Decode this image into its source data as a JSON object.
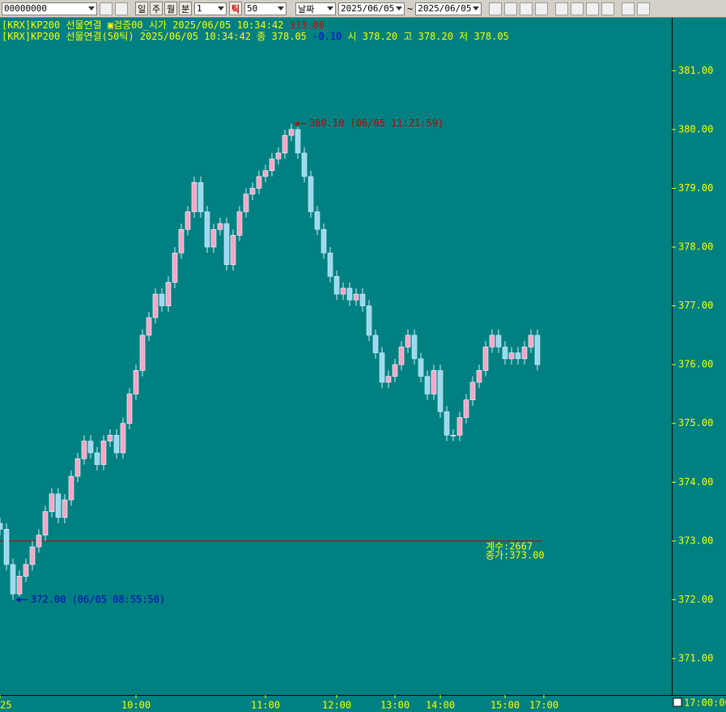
{
  "toolbar": {
    "code": "00000000",
    "period_buttons": [
      "일",
      "주",
      "월",
      "분"
    ],
    "interval": "1",
    "tick_button": "틱",
    "tick_count": "50",
    "date_mode": "날짜",
    "start_date": "2025/06/05",
    "date_separator": "~",
    "end_date": "2025/06/05"
  },
  "legend": {
    "line1": {
      "text": "[KRX]KP200 선물연결 ▣검증00_시가  2025/06/05 10:34:42",
      "value": "373.00"
    },
    "line2": {
      "text": "[KRX]KP200 선물연결(50틱) 2025/06/05 10:34:42  종 378.05",
      "change": "-0.10",
      "rest": "시 378.20 고 378.20 저 378.05"
    }
  },
  "chart_data": {
    "type": "candlestick",
    "up_color": "#f4a6c8",
    "down_color": "#9ed8f0",
    "wick_color": "#d8ecff",
    "open": [
      373.3,
      373.2,
      372.6,
      372.1,
      372.4,
      372.6,
      372.9,
      373.1,
      373.5,
      373.8,
      373.4,
      373.7,
      374.1,
      374.4,
      374.7,
      374.5,
      374.3,
      374.7,
      374.8,
      374.5,
      375.0,
      375.5,
      375.9,
      376.5,
      376.8,
      377.2,
      377.0,
      377.4,
      377.9,
      378.3,
      378.6,
      379.1,
      378.6,
      378.0,
      378.3,
      378.4,
      377.7,
      378.2,
      378.6,
      378.9,
      379.0,
      379.2,
      379.3,
      379.5,
      379.6,
      379.9,
      380.0,
      379.6,
      379.2,
      378.6,
      378.3,
      377.9,
      377.5,
      377.2,
      377.3,
      377.1,
      377.2,
      377.0,
      376.5,
      376.2,
      375.7,
      375.8,
      376.0,
      376.3,
      376.5,
      376.1,
      375.8,
      375.5,
      375.9,
      375.2,
      374.8,
      374.8,
      375.1,
      375.4,
      375.7,
      375.9,
      376.3,
      376.5,
      376.3,
      376.1,
      376.2,
      376.1,
      376.3,
      376.5
    ],
    "high": [
      373.4,
      373.3,
      372.7,
      372.5,
      372.7,
      373.0,
      373.2,
      373.6,
      373.9,
      373.9,
      373.8,
      374.2,
      374.5,
      374.8,
      374.8,
      374.6,
      374.8,
      374.9,
      374.9,
      375.1,
      375.6,
      376.0,
      376.6,
      376.9,
      377.3,
      377.3,
      377.5,
      378.0,
      378.4,
      378.7,
      379.2,
      379.2,
      378.7,
      378.4,
      378.5,
      378.5,
      378.3,
      378.7,
      379.0,
      379.1,
      379.3,
      379.4,
      379.6,
      379.7,
      380.0,
      380.1,
      380.05,
      379.7,
      379.3,
      378.7,
      378.4,
      378.0,
      377.6,
      377.4,
      377.4,
      377.3,
      377.3,
      377.1,
      376.6,
      376.3,
      375.9,
      376.1,
      376.4,
      376.6,
      376.6,
      376.2,
      375.9,
      376.0,
      376.0,
      375.3,
      374.9,
      375.2,
      375.5,
      375.8,
      376.0,
      376.4,
      376.6,
      376.6,
      376.4,
      376.3,
      376.3,
      376.4,
      376.6,
      376.6
    ],
    "low": [
      373.1,
      372.5,
      372.0,
      372.05,
      372.3,
      372.5,
      372.8,
      373.0,
      373.4,
      373.3,
      373.3,
      373.6,
      374.0,
      374.3,
      374.4,
      374.2,
      374.2,
      374.6,
      374.4,
      374.4,
      374.9,
      375.4,
      375.8,
      376.4,
      376.7,
      376.9,
      376.9,
      377.3,
      377.8,
      378.2,
      378.5,
      378.5,
      377.9,
      377.9,
      378.2,
      377.6,
      377.6,
      378.1,
      378.5,
      378.8,
      378.9,
      379.1,
      379.2,
      379.4,
      379.5,
      379.8,
      379.5,
      379.1,
      378.5,
      378.2,
      377.8,
      377.4,
      377.1,
      377.1,
      377.0,
      377.0,
      376.9,
      376.4,
      376.1,
      375.6,
      375.6,
      375.7,
      375.9,
      376.2,
      376.0,
      375.7,
      375.4,
      375.4,
      375.1,
      374.7,
      374.7,
      374.7,
      375.0,
      375.3,
      375.6,
      375.8,
      376.2,
      376.2,
      376.0,
      376.0,
      376.0,
      376.0,
      376.2,
      375.9
    ],
    "close": [
      373.2,
      372.6,
      372.1,
      372.4,
      372.6,
      372.9,
      373.1,
      373.5,
      373.8,
      373.4,
      373.7,
      374.1,
      374.4,
      374.7,
      374.5,
      374.3,
      374.7,
      374.8,
      374.5,
      375.0,
      375.5,
      375.9,
      376.5,
      376.8,
      377.2,
      377.0,
      377.4,
      377.9,
      378.3,
      378.6,
      379.1,
      378.6,
      378.0,
      378.3,
      378.4,
      377.7,
      378.2,
      378.6,
      378.9,
      379.0,
      379.2,
      379.3,
      379.5,
      379.6,
      379.9,
      380.0,
      379.6,
      379.2,
      378.6,
      378.3,
      377.9,
      377.5,
      377.2,
      377.3,
      377.1,
      377.2,
      377.0,
      376.5,
      376.2,
      375.7,
      375.8,
      376.0,
      376.3,
      376.5,
      376.1,
      375.8,
      375.5,
      375.9,
      375.2,
      374.8,
      374.8,
      375.1,
      375.4,
      375.7,
      375.9,
      376.3,
      376.5,
      376.3,
      376.1,
      376.2,
      376.1,
      376.3,
      376.5,
      376.0
    ],
    "xlim": [
      0,
      84
    ],
    "xticks": [
      {
        "value": 0,
        "label": "25"
      },
      {
        "value": 21,
        "label": "10:00"
      },
      {
        "value": 41,
        "label": "11:00"
      },
      {
        "value": 52,
        "label": "12:00"
      },
      {
        "value": 61,
        "label": "13:00"
      },
      {
        "value": 68,
        "label": "14:00"
      },
      {
        "value": 78,
        "label": "15:00"
      },
      {
        "value": 84,
        "label": "17:00"
      }
    ],
    "ylim": [
      370.38,
      381.9
    ],
    "yticks": [
      {
        "value": 371,
        "label": "371.00"
      },
      {
        "value": 372,
        "label": "372.00"
      },
      {
        "value": 373,
        "label": "373.00"
      },
      {
        "value": 374,
        "label": "374.00"
      },
      {
        "value": 375,
        "label": "375.00"
      },
      {
        "value": 376,
        "label": "376.00"
      },
      {
        "value": 377,
        "label": "377.00"
      },
      {
        "value": 378,
        "label": "378.00"
      },
      {
        "value": 379,
        "label": "379.00"
      },
      {
        "value": 380,
        "label": "380.00"
      },
      {
        "value": 381,
        "label": "381.00"
      }
    ],
    "high_marker": {
      "x": 45,
      "value": 380.1,
      "label": "380.10 (06/05 11:21:59)",
      "color": "#c00000"
    },
    "low_marker": {
      "x": 2,
      "value": 372.0,
      "label": "372.00 (06/05 08:55:50)",
      "color": "#0000c0"
    },
    "ref_line": {
      "value": 373,
      "color": "#c00000",
      "labels": [
        "계수:2667",
        "종가:373.00"
      ]
    },
    "time_readout": "17:00:00"
  }
}
